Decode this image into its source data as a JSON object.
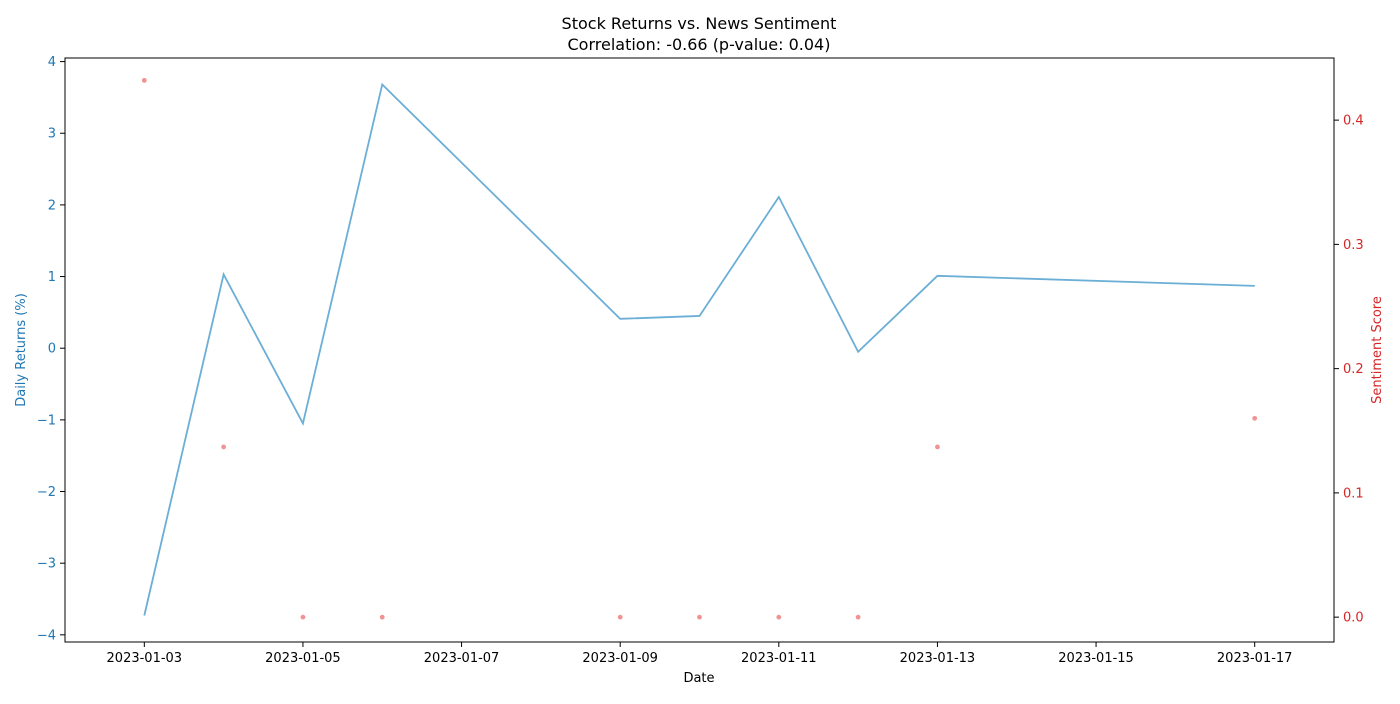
{
  "chart_data": {
    "type": "line",
    "title": "Stock Returns vs. News Sentiment",
    "subtitle": "Correlation: -0.66 (p-value: 0.04)",
    "xlabel": "Date",
    "ylabel_left": "Daily Returns (%)",
    "ylabel_right": "Sentiment Score",
    "x_ticks": [
      "2023-01-03",
      "2023-01-05",
      "2023-01-07",
      "2023-01-09",
      "2023-01-11",
      "2023-01-13",
      "2023-01-15",
      "2023-01-17"
    ],
    "y_left_ticks": [
      -4,
      -3,
      -2,
      -1,
      0,
      1,
      2,
      3,
      4
    ],
    "y_right_ticks": [
      0.0,
      0.1,
      0.2,
      0.3,
      0.4
    ],
    "xlim": [
      "2023-01-02",
      "2023-01-18"
    ],
    "ylim_left": [
      -4.1,
      4.05
    ],
    "ylim_right": [
      -0.02,
      0.45
    ],
    "grid": false,
    "series": [
      {
        "type": "line",
        "axis": "left",
        "color": "#6baed6",
        "points": [
          {
            "x": "2023-01-03",
            "y": -3.73
          },
          {
            "x": "2023-01-04",
            "y": 1.03
          },
          {
            "x": "2023-01-05",
            "y": -1.05
          },
          {
            "x": "2023-01-06",
            "y": 3.68
          },
          {
            "x": "2023-01-09",
            "y": 0.41
          },
          {
            "x": "2023-01-10",
            "y": 0.45
          },
          {
            "x": "2023-01-11",
            "y": 2.11
          },
          {
            "x": "2023-01-12",
            "y": -0.05
          },
          {
            "x": "2023-01-13",
            "y": 1.01
          },
          {
            "x": "2023-01-17",
            "y": 0.87
          }
        ]
      },
      {
        "type": "scatter",
        "axis": "right",
        "color": "#f08080",
        "points": [
          {
            "x": "2023-01-03",
            "y": 0.432
          },
          {
            "x": "2023-01-04",
            "y": 0.137
          },
          {
            "x": "2023-01-05",
            "y": 0.0
          },
          {
            "x": "2023-01-06",
            "y": 0.0
          },
          {
            "x": "2023-01-09",
            "y": 0.0
          },
          {
            "x": "2023-01-10",
            "y": 0.0
          },
          {
            "x": "2023-01-11",
            "y": 0.0
          },
          {
            "x": "2023-01-12",
            "y": 0.0
          },
          {
            "x": "2023-01-13",
            "y": 0.137
          },
          {
            "x": "2023-01-17",
            "y": 0.16
          }
        ]
      }
    ],
    "colors": {
      "left_axis": "#1f77b4",
      "right_axis": "#d62728",
      "text": "#000000"
    }
  }
}
